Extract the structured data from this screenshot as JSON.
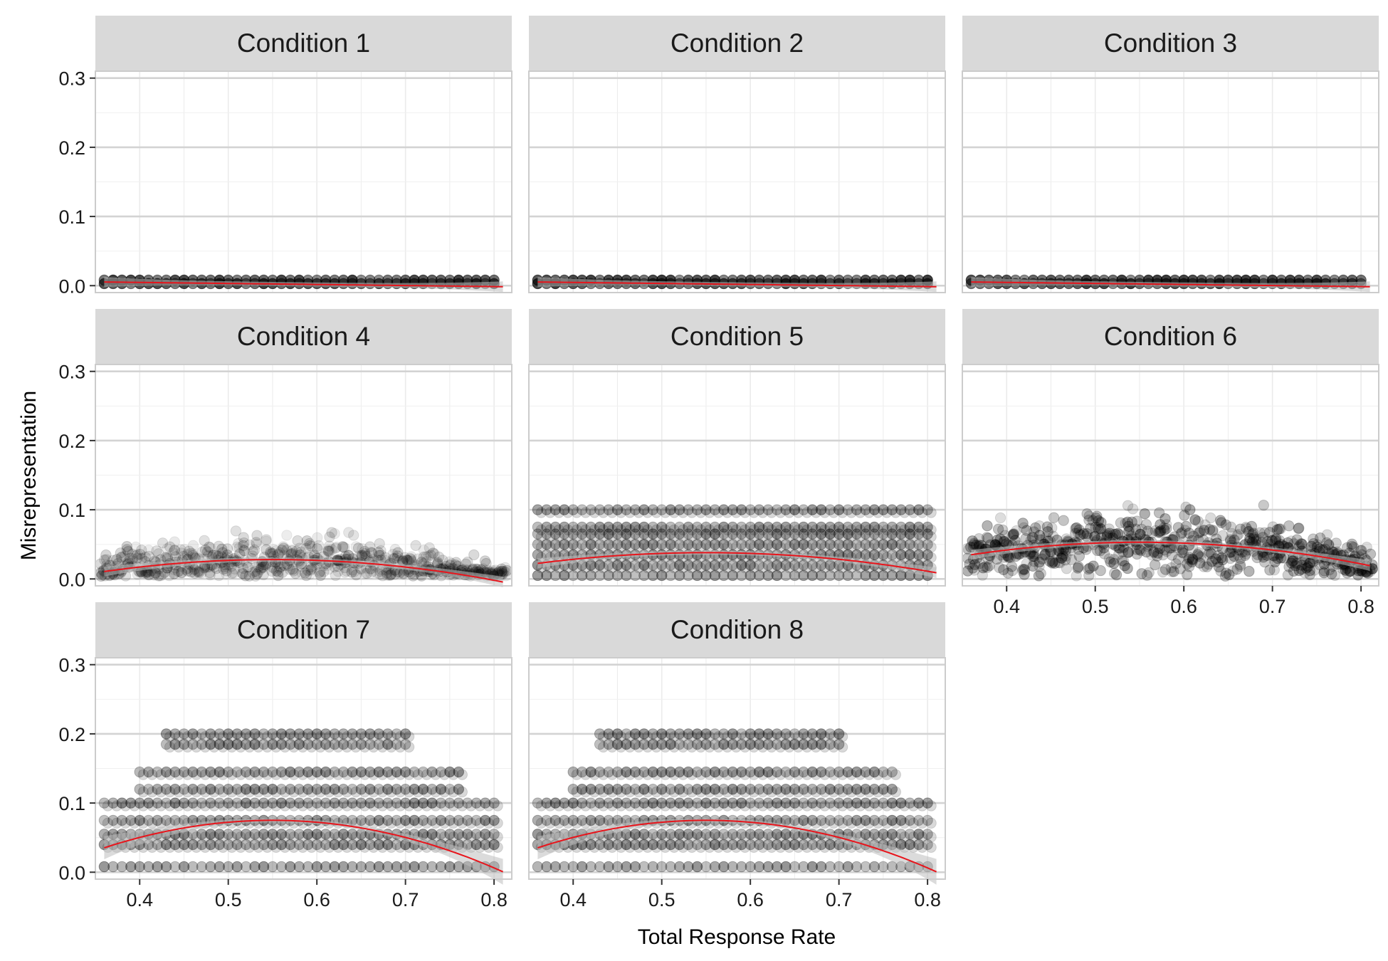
{
  "chart_data": {
    "type": "scatter",
    "facet": true,
    "xlabel": "Total Response Rate",
    "ylabel": "Misrepresentation",
    "xlim": [
      0.35,
      0.82
    ],
    "ylim": [
      -0.01,
      0.31
    ],
    "x_ticks": [
      0.4,
      0.5,
      0.6,
      0.7,
      0.8
    ],
    "y_ticks": [
      0.0,
      0.1,
      0.2,
      0.3
    ],
    "grid": true,
    "colors": {
      "points": "#000000",
      "fit_line": "#e8141b",
      "confidence_band": "#bdbdbd",
      "strip_background": "#d9d9d9",
      "panel_border": "#cccccc",
      "grid": "#d3d3d3"
    },
    "panels": [
      {
        "title": "Condition 1",
        "fit": {
          "a": 0.0053,
          "b": -0.0151,
          "c": 0.0
        },
        "levels": [
          0.003,
          0.008
        ],
        "jitter": 0.0,
        "opacity": 0.55,
        "xmax": 0.8
      },
      {
        "title": "Condition 2",
        "fit": {
          "a": 0.0053,
          "b": -0.0151,
          "c": 0.0
        },
        "levels": [
          0.003,
          0.008
        ],
        "jitter": 0.0,
        "opacity": 0.55,
        "xmax": 0.8
      },
      {
        "title": "Condition 3",
        "fit": {
          "a": 0.0053,
          "b": -0.0151,
          "c": 0.0
        },
        "levels": [
          0.003,
          0.008
        ],
        "jitter": 0.0,
        "opacity": 0.55,
        "xmax": 0.8
      },
      {
        "title": "Condition 4",
        "fit": {
          "a": 0.028,
          "b": 0.0,
          "c": -0.48
        },
        "levels": [],
        "jitter": 0.06,
        "opacity": 0.12,
        "xmax": 0.8
      },
      {
        "title": "Condition 5",
        "fit": {
          "a": 0.038,
          "b": 0.0,
          "c": -0.43
        },
        "levels": [
          0.005,
          0.02,
          0.035,
          0.05,
          0.065,
          0.075,
          0.1
        ],
        "jitter": 0.0,
        "opacity": 0.3,
        "xmax": 0.8
      },
      {
        "title": "Condition 6",
        "fit": {
          "a": 0.053,
          "b": 0.0,
          "c": -0.5
        },
        "levels": [],
        "jitter": 0.085,
        "opacity": 0.22,
        "xmax": 0.8
      },
      {
        "title": "Condition 7",
        "fit": {
          "a": 0.075,
          "b": 0.0,
          "c": -1.1
        },
        "levels": [
          0.008,
          0.04,
          0.055,
          0.075,
          0.1,
          0.12,
          0.145,
          0.185,
          0.2
        ],
        "jitter": 0.0,
        "opacity": 0.3,
        "xmax": 0.8
      },
      {
        "title": "Condition 8",
        "fit": {
          "a": 0.075,
          "b": 0.0,
          "c": -1.1
        },
        "levels": [
          0.008,
          0.04,
          0.055,
          0.075,
          0.1,
          0.12,
          0.145,
          0.185,
          0.2
        ],
        "jitter": 0.0,
        "opacity": 0.3,
        "xmax": 0.8
      }
    ]
  }
}
